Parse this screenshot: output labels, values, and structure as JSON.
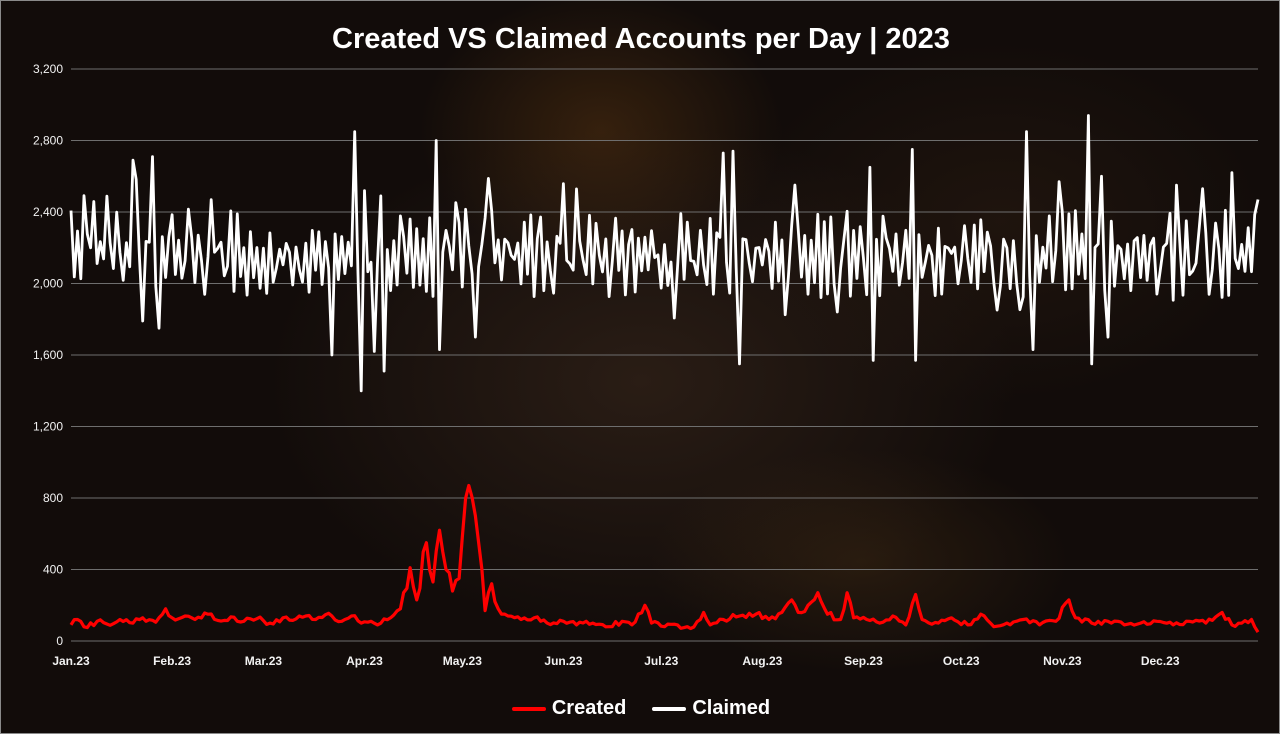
{
  "chart_data": {
    "type": "line",
    "title": "Created VS Claimed Accounts per Day | 2023",
    "xlabel": "",
    "ylabel": "",
    "ylim": [
      0,
      3200
    ],
    "y_ticks": [
      "0",
      "400",
      "800",
      "1,200",
      "1,600",
      "2,000",
      "2,400",
      "2,800",
      "3,200"
    ],
    "x_ticks": [
      "Jan.23",
      "Feb.23",
      "Mar.23",
      "Apr.23",
      "May.23",
      "Jun.23",
      "Jul.23",
      "Aug.23",
      "Sep.23",
      "Oct.23",
      "Nov.23",
      "Dec.23"
    ],
    "x_start": "2023-01-01",
    "x_end": "2023-12-31",
    "grid": "horizontal",
    "legend_position": "bottom",
    "series": [
      {
        "name": "Created",
        "color": "#ff0000",
        "keypoints": [
          [
            "2023-01-01",
            90
          ],
          [
            "2023-01-03",
            120
          ],
          [
            "2023-01-06",
            75
          ],
          [
            "2023-01-09",
            110
          ],
          [
            "2023-01-12",
            95
          ],
          [
            "2023-01-16",
            120
          ],
          [
            "2023-01-20",
            100
          ],
          [
            "2023-01-23",
            130
          ],
          [
            "2023-01-27",
            105
          ],
          [
            "2023-01-30",
            180
          ],
          [
            "2023-02-01",
            130
          ],
          [
            "2023-02-05",
            140
          ],
          [
            "2023-02-08",
            120
          ],
          [
            "2023-02-12",
            150
          ],
          [
            "2023-02-15",
            115
          ],
          [
            "2023-02-19",
            135
          ],
          [
            "2023-02-23",
            110
          ],
          [
            "2023-02-27",
            125
          ],
          [
            "2023-03-03",
            100
          ],
          [
            "2023-03-07",
            130
          ],
          [
            "2023-03-10",
            115
          ],
          [
            "2023-03-14",
            140
          ],
          [
            "2023-03-17",
            120
          ],
          [
            "2023-03-21",
            155
          ],
          [
            "2023-03-25",
            110
          ],
          [
            "2023-03-28",
            140
          ],
          [
            "2023-03-31",
            100
          ],
          [
            "2023-04-03",
            110
          ],
          [
            "2023-04-05",
            90
          ],
          [
            "2023-04-09",
            130
          ],
          [
            "2023-04-12",
            180
          ],
          [
            "2023-04-15",
            410
          ],
          [
            "2023-04-17",
            230
          ],
          [
            "2023-04-20",
            550
          ],
          [
            "2023-04-22",
            330
          ],
          [
            "2023-04-24",
            620
          ],
          [
            "2023-04-26",
            400
          ],
          [
            "2023-04-28",
            280
          ],
          [
            "2023-04-30",
            350
          ],
          [
            "2023-05-01",
            580
          ],
          [
            "2023-05-03",
            870
          ],
          [
            "2023-05-05",
            700
          ],
          [
            "2023-05-07",
            400
          ],
          [
            "2023-05-08",
            170
          ],
          [
            "2023-05-10",
            320
          ],
          [
            "2023-05-12",
            180
          ],
          [
            "2023-05-15",
            140
          ],
          [
            "2023-05-19",
            120
          ],
          [
            "2023-05-23",
            130
          ],
          [
            "2023-05-27",
            100
          ],
          [
            "2023-06-01",
            110
          ],
          [
            "2023-06-05",
            90
          ],
          [
            "2023-06-10",
            100
          ],
          [
            "2023-06-15",
            80
          ],
          [
            "2023-06-19",
            110
          ],
          [
            "2023-06-22",
            90
          ],
          [
            "2023-06-26",
            200
          ],
          [
            "2023-06-28",
            100
          ],
          [
            "2023-07-02",
            80
          ],
          [
            "2023-07-06",
            90
          ],
          [
            "2023-07-10",
            70
          ],
          [
            "2023-07-14",
            160
          ],
          [
            "2023-07-16",
            90
          ],
          [
            "2023-07-20",
            120
          ],
          [
            "2023-07-25",
            140
          ],
          [
            "2023-07-30",
            150
          ],
          [
            "2023-08-03",
            120
          ],
          [
            "2023-08-07",
            160
          ],
          [
            "2023-08-10",
            230
          ],
          [
            "2023-08-12",
            160
          ],
          [
            "2023-08-15",
            200
          ],
          [
            "2023-08-18",
            270
          ],
          [
            "2023-08-21",
            150
          ],
          [
            "2023-08-25",
            120
          ],
          [
            "2023-08-27",
            270
          ],
          [
            "2023-08-29",
            130
          ],
          [
            "2023-09-02",
            120
          ],
          [
            "2023-09-06",
            100
          ],
          [
            "2023-09-10",
            140
          ],
          [
            "2023-09-14",
            90
          ],
          [
            "2023-09-17",
            260
          ],
          [
            "2023-09-19",
            120
          ],
          [
            "2023-09-24",
            100
          ],
          [
            "2023-09-28",
            130
          ],
          [
            "2023-10-03",
            90
          ],
          [
            "2023-10-07",
            150
          ],
          [
            "2023-10-11",
            80
          ],
          [
            "2023-10-15",
            100
          ],
          [
            "2023-10-20",
            120
          ],
          [
            "2023-10-25",
            90
          ],
          [
            "2023-10-30",
            110
          ],
          [
            "2023-11-03",
            230
          ],
          [
            "2023-11-05",
            130
          ],
          [
            "2023-11-10",
            100
          ],
          [
            "2023-11-15",
            110
          ],
          [
            "2023-11-20",
            90
          ],
          [
            "2023-11-25",
            100
          ],
          [
            "2023-11-30",
            110
          ],
          [
            "2023-12-05",
            90
          ],
          [
            "2023-12-10",
            110
          ],
          [
            "2023-12-15",
            100
          ],
          [
            "2023-12-20",
            160
          ],
          [
            "2023-12-23",
            90
          ],
          [
            "2023-12-26",
            100
          ],
          [
            "2023-12-29",
            120
          ],
          [
            "2023-12-31",
            50
          ]
        ]
      },
      {
        "name": "Claimed",
        "color": "#ffffff",
        "base": 2150,
        "amplitude": 230,
        "extremes": [
          [
            "2023-01-20",
            2690
          ],
          [
            "2023-01-23",
            1790
          ],
          [
            "2023-01-26",
            2710
          ],
          [
            "2023-01-28",
            1750
          ],
          [
            "2023-03-22",
            1600
          ],
          [
            "2023-03-29",
            2850
          ],
          [
            "2023-03-31",
            1400
          ],
          [
            "2023-04-01",
            2520
          ],
          [
            "2023-04-04",
            1620
          ],
          [
            "2023-04-06",
            2490
          ],
          [
            "2023-04-07",
            1510
          ],
          [
            "2023-04-23",
            2800
          ],
          [
            "2023-04-24",
            1630
          ],
          [
            "2023-05-05",
            1700
          ],
          [
            "2023-07-20",
            2730
          ],
          [
            "2023-07-23",
            2740
          ],
          [
            "2023-07-25",
            1550
          ],
          [
            "2023-09-03",
            2650
          ],
          [
            "2023-09-04",
            1570
          ],
          [
            "2023-09-16",
            2750
          ],
          [
            "2023-09-17",
            1570
          ],
          [
            "2023-10-21",
            2850
          ],
          [
            "2023-10-23",
            1630
          ],
          [
            "2023-11-09",
            2940
          ],
          [
            "2023-11-10",
            1550
          ],
          [
            "2023-11-13",
            2600
          ],
          [
            "2023-11-15",
            1700
          ],
          [
            "2023-12-23",
            2620
          ],
          [
            "2023-12-31",
            2470
          ]
        ]
      }
    ]
  }
}
